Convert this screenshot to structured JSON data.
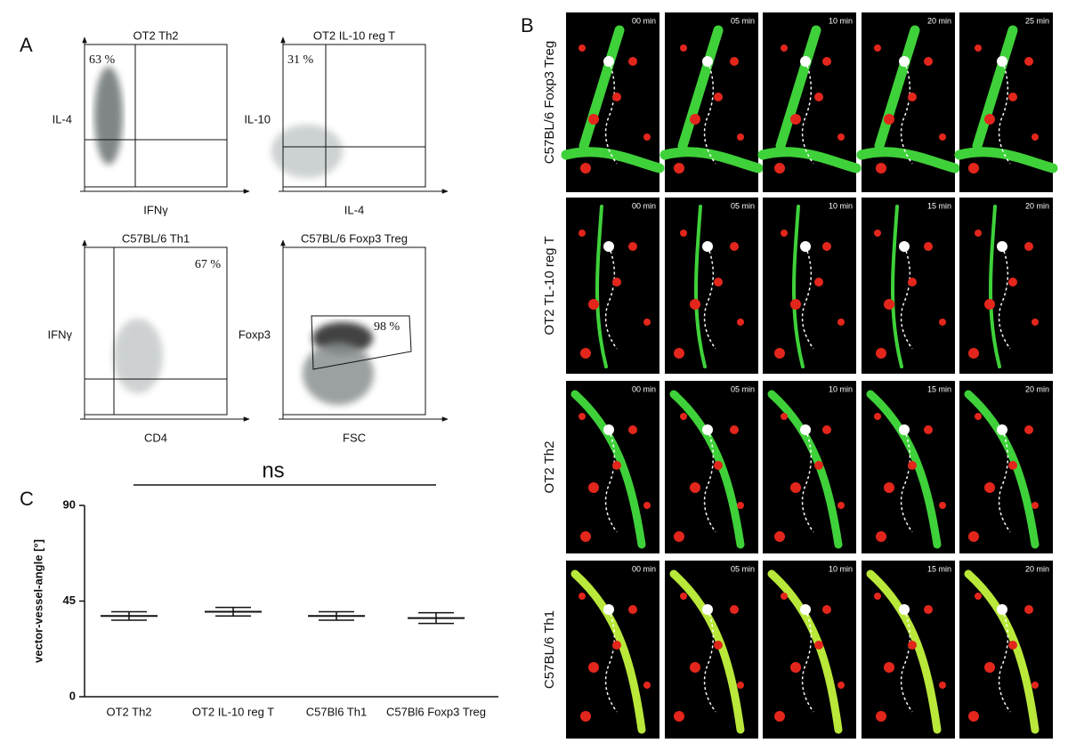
{
  "panel_labels": [
    "A",
    "B",
    "C"
  ],
  "flow_plots": [
    {
      "title": "OT2 Th2",
      "y_label": "IL-4",
      "x_label": "IFNγ",
      "percent": "63 %"
    },
    {
      "title": "OT2 IL-10 reg T",
      "y_label": "IL-10",
      "x_label": "IL-4",
      "percent": "31 %"
    },
    {
      "title": "C57BL/6 Th1",
      "y_label": "IFNγ",
      "x_label": "CD4",
      "percent": "67 %"
    },
    {
      "title": "C57BL/6 Foxp3 Treg",
      "y_label": "Foxp3",
      "x_label": "FSC",
      "percent": "98 %"
    }
  ],
  "imaging": {
    "rows": [
      {
        "label": "C57BL/6 Foxp3 Treg",
        "times": [
          "00 min",
          "05 min",
          "10 min",
          "20 min",
          "25 min"
        ]
      },
      {
        "label": "OT2 TL-10 reg T",
        "times": [
          "00 min",
          "05 min",
          "10 min",
          "15 min",
          "20 min"
        ]
      },
      {
        "label": "OT2 Th2",
        "times": [
          "00 min",
          "05 min",
          "10 min",
          "15 min",
          "20 min"
        ]
      },
      {
        "label": "C57BL/6 Th1",
        "times": [
          "00 min",
          "05 min",
          "10 min",
          "15 min",
          "20 min"
        ]
      }
    ]
  },
  "chart_data": {
    "type": "dot",
    "annotation": "ns",
    "y_label": "vector-vessel-angle [°]",
    "categories": [
      "OT2 Th2",
      "OT2 IL-10 reg T",
      "C57Bl6 Th1",
      "C57Bl6 Foxp3 Treg"
    ],
    "values": [
      38,
      40,
      38,
      37
    ],
    "errors": [
      2,
      2,
      2,
      2.5
    ],
    "ylim": [
      0,
      90
    ],
    "yticks": [
      0,
      45,
      90
    ]
  }
}
